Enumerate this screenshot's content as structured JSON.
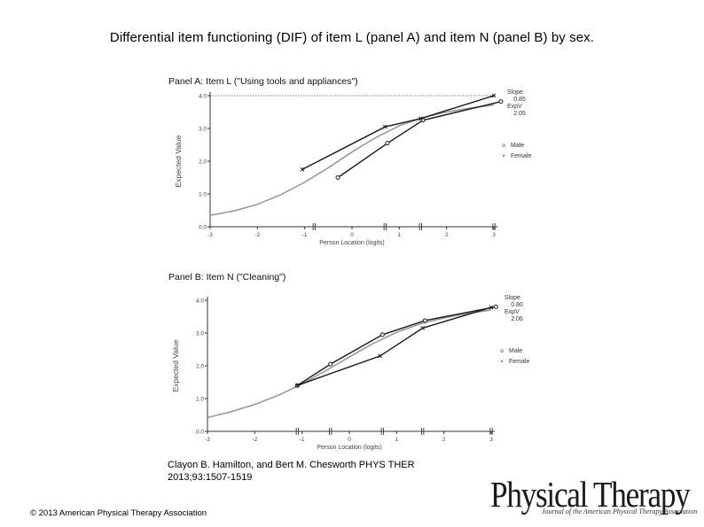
{
  "title": "Differential item functioning (DIF) of item L (panel A) and item N (panel B) by sex.",
  "citation": {
    "line1": "Clayon B. Hamilton, and Bert M. Chesworth PHYS THER",
    "line2": "2013;93:1507-1519"
  },
  "copyright": "© 2013 American Physical Therapy Association",
  "logo": {
    "name": "Physical Therapy",
    "subtitle": "Journal of the American Physical Therapy Association"
  },
  "colors": {
    "curve": "#9a9a9a",
    "series": "#1a1a1a",
    "dashed": "#555555",
    "axis": "#333333"
  },
  "chart_data": [
    {
      "type": "line",
      "title": "Panel A: Item L (\"Using tools and appliances\")",
      "xlabel": "Person Location (logits)",
      "ylabel": "Expected Value",
      "xlim": [
        -3,
        3
      ],
      "ylim": [
        0,
        4
      ],
      "xticks": [
        "-3",
        "-2",
        "-1",
        "0",
        "1",
        "2",
        "3"
      ],
      "yticks": [
        "0.0",
        "1.0",
        "2.0",
        "3.0",
        "4.0"
      ],
      "annotation": {
        "slope_label": "Slope",
        "slope": "0.85",
        "expv_label": "ExpV",
        "expv": "2.05"
      },
      "legend": [
        {
          "marker": "o",
          "label": "Male"
        },
        {
          "marker": "×",
          "label": "Female"
        }
      ],
      "class_interval_ticks": [
        -0.8,
        0.7,
        1.45,
        3.0
      ],
      "expected_curve": {
        "x": [
          -3,
          -2.5,
          -2,
          -1.5,
          -1,
          -0.5,
          0,
          0.5,
          1,
          1.5,
          2,
          2.5,
          3
        ],
        "y": [
          0.35,
          0.48,
          0.68,
          0.98,
          1.36,
          1.8,
          2.28,
          2.72,
          3.08,
          3.33,
          3.5,
          3.62,
          3.72
        ]
      },
      "series": [
        {
          "name": "Male",
          "marker": "o",
          "x": [
            -0.3,
            0.75,
            1.5,
            3.15
          ],
          "y": [
            1.5,
            2.55,
            3.25,
            3.82
          ]
        },
        {
          "name": "Female",
          "marker": "×",
          "x": [
            -1.05,
            0.7,
            1.45,
            3.0
          ],
          "y": [
            1.75,
            3.05,
            3.3,
            4.0
          ]
        }
      ],
      "dashed_line_y": 4.0
    },
    {
      "type": "line",
      "title": "Panel B: Item N (\"Cleaning\")",
      "xlabel": "Person Location (logits)",
      "ylabel": "Expected Value",
      "xlim": [
        -3,
        3
      ],
      "ylim": [
        0,
        4
      ],
      "xticks": [
        "-3",
        "-2",
        "-1",
        "0",
        "1",
        "2",
        "3"
      ],
      "yticks": [
        "0.0",
        "1.0",
        "2.0",
        "3.0",
        "4.0"
      ],
      "annotation": {
        "slope_label": "Slope",
        "slope": "0.80",
        "expv_label": "ExpV",
        "expv": "2.06"
      },
      "legend": [
        {
          "marker": "o",
          "label": "Male"
        },
        {
          "marker": "×",
          "label": "Female"
        }
      ],
      "class_interval_ticks": [
        -1.1,
        -0.4,
        0.7,
        1.55,
        3.0
      ],
      "expected_curve": {
        "x": [
          -3,
          -2.5,
          -2,
          -1.5,
          -1,
          -0.5,
          0,
          0.5,
          1,
          1.5,
          2,
          2.5,
          3
        ],
        "y": [
          0.42,
          0.6,
          0.82,
          1.1,
          1.45,
          1.85,
          2.27,
          2.68,
          3.02,
          3.28,
          3.46,
          3.6,
          3.7
        ]
      },
      "series": [
        {
          "name": "Male",
          "marker": "o",
          "x": [
            -1.1,
            -0.4,
            0.7,
            1.6,
            3.1
          ],
          "y": [
            1.4,
            2.05,
            2.95,
            3.38,
            3.8
          ]
        },
        {
          "name": "Female",
          "marker": "×",
          "x": [
            -1.1,
            0.65,
            1.55,
            3.0
          ],
          "y": [
            1.4,
            2.3,
            3.15,
            3.78
          ]
        }
      ]
    }
  ]
}
